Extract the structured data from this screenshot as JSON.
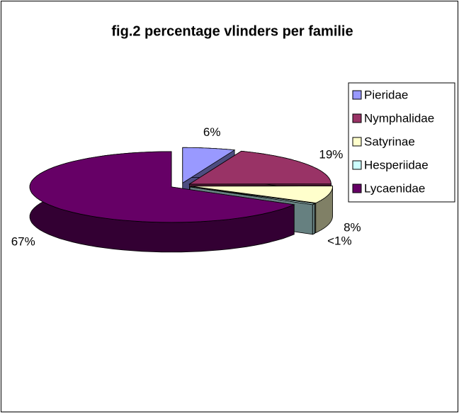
{
  "chart_data": {
    "type": "pie",
    "title": "fig.2  percentage vlinders per familie",
    "categories": [
      "Pieridae",
      "Nymphalidae",
      "Satyrinae",
      "Hesperiidae",
      "Lycaenidae"
    ],
    "values": [
      6,
      19,
      8,
      0.5,
      67
    ],
    "value_labels": [
      "6%",
      "19%",
      "8%",
      "<1%",
      "67%"
    ],
    "colors": [
      "#9999ff",
      "#993366",
      "#ffffcc",
      "#ccffff",
      "#660066"
    ],
    "legend": "right",
    "start_angle": 0,
    "direction": "clockwise",
    "exploded": true,
    "three_d": true
  }
}
